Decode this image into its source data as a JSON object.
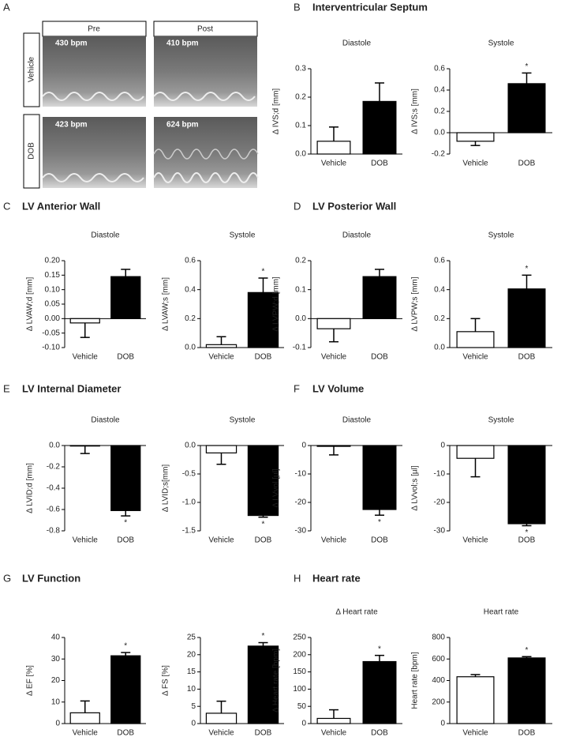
{
  "panel_a": {
    "letter": "A",
    "columns": [
      "Pre",
      "Post"
    ],
    "rows": [
      "Vehicle",
      "DOB"
    ],
    "rates": [
      "430 bpm",
      "410 bpm",
      "423 bpm",
      "624 bpm"
    ]
  },
  "panels": [
    {
      "letter": "B",
      "title": "Interventricular Septum"
    },
    {
      "letter": "C",
      "title": "LV Anterior Wall"
    },
    {
      "letter": "D",
      "title": "LV Posterior Wall"
    },
    {
      "letter": "E",
      "title": "LV Internal  Diameter"
    },
    {
      "letter": "F",
      "title": "LV Volume"
    },
    {
      "letter": "G",
      "title": "LV Function"
    },
    {
      "letter": "H",
      "title": "Heart rate"
    }
  ],
  "chart_data": [
    {
      "type": "bar",
      "title": "Diastole",
      "y_label": "Δ IVS;d [mm]",
      "categories": [
        "Vehicle",
        "DOB"
      ],
      "values": [
        0.045,
        0.185
      ],
      "errors": [
        0.05,
        0.065
      ],
      "markers": [
        null,
        null
      ],
      "colors": [
        "#ffffff",
        "#000000"
      ],
      "ylim": [
        0,
        0.3
      ],
      "yticks": [
        {
          "value": 0,
          "label": "0.0"
        },
        0.1,
        0.2,
        0.3
      ]
    },
    {
      "type": "bar",
      "title": "Systole",
      "y_label": "Δ IVS;s [mm]",
      "categories": [
        "Vehicle",
        "DOB"
      ],
      "values": [
        -0.08,
        0.46
      ],
      "errors": [
        0.04,
        0.1
      ],
      "markers": [
        null,
        "*"
      ],
      "colors": [
        "#ffffff",
        "#000000"
      ],
      "ylim": [
        -0.2,
        0.6
      ],
      "yticks": [
        -0.2,
        {
          "value": 0,
          "label": "0.0"
        },
        0.2,
        0.4,
        0.6
      ]
    },
    {
      "type": "bar",
      "title": "Diastole",
      "y_label": "Δ LVAW;d [mm]",
      "categories": [
        "Vehicle",
        "DOB"
      ],
      "values": [
        -0.015,
        0.145
      ],
      "errors": [
        0.05,
        0.025
      ],
      "markers": [
        null,
        null
      ],
      "colors": [
        "#ffffff",
        "#000000"
      ],
      "ylim": [
        -0.1,
        0.2
      ],
      "yticks": [
        {
          "value": -0.1,
          "label": "-0.10"
        },
        {
          "value": -0.05,
          "label": "-0.05"
        },
        {
          "value": 0,
          "label": "0.00"
        },
        {
          "value": 0.05,
          "label": "0.05"
        },
        {
          "value": 0.1,
          "label": "0.10"
        },
        0.15,
        {
          "value": 0.2,
          "label": "0.20"
        }
      ]
    },
    {
      "type": "bar",
      "title": "Systole",
      "y_label": "Δ LVAW;s [mm]",
      "categories": [
        "Vehicle",
        "DOB"
      ],
      "values": [
        0.02,
        0.38
      ],
      "errors": [
        0.055,
        0.1
      ],
      "markers": [
        null,
        "*"
      ],
      "colors": [
        "#ffffff",
        "#000000"
      ],
      "ylim": [
        0,
        0.6
      ],
      "yticks": [
        {
          "value": 0,
          "label": "0.0"
        },
        0.2,
        0.4,
        0.6
      ]
    },
    {
      "type": "bar",
      "title": "Diastole",
      "y_label": "Δ LVPW;d [mm]",
      "categories": [
        "Vehicle",
        "DOB"
      ],
      "values": [
        -0.035,
        0.145
      ],
      "errors": [
        0.045,
        0.025
      ],
      "markers": [
        null,
        null
      ],
      "colors": [
        "#ffffff",
        "#000000"
      ],
      "ylim": [
        -0.1,
        0.2
      ],
      "yticks": [
        -0.1,
        {
          "value": 0,
          "label": "0.0"
        },
        0.1,
        0.2
      ]
    },
    {
      "type": "bar",
      "title": "Systole",
      "y_label": "Δ LVPW;s [mm]",
      "categories": [
        "Vehicle",
        "DOB"
      ],
      "values": [
        0.11,
        0.405
      ],
      "errors": [
        0.09,
        0.095
      ],
      "markers": [
        null,
        "*"
      ],
      "colors": [
        "#ffffff",
        "#000000"
      ],
      "ylim": [
        0,
        0.6
      ],
      "yticks": [
        {
          "value": 0,
          "label": "0.0"
        },
        0.2,
        0.4,
        0.6
      ]
    },
    {
      "type": "bar",
      "title": "Diastole",
      "y_label": "Δ LVID;d [mm]",
      "categories": [
        "Vehicle",
        "DOB"
      ],
      "values": [
        -0.005,
        -0.61
      ],
      "errors": [
        0.07,
        0.05
      ],
      "markers": [
        null,
        "*"
      ],
      "colors": [
        "#ffffff",
        "#000000"
      ],
      "ylim": [
        -0.8,
        0
      ],
      "yticks": [
        {
          "value": 0,
          "label": "0.0"
        },
        -0.2,
        -0.4,
        -0.6,
        -0.8
      ]
    },
    {
      "type": "bar",
      "title": "Systole",
      "y_label": "Δ LVID;s[mm]",
      "categories": [
        "Vehicle",
        "DOB"
      ],
      "values": [
        -0.13,
        -1.23
      ],
      "errors": [
        0.2,
        0.03
      ],
      "markers": [
        null,
        "*"
      ],
      "colors": [
        "#ffffff",
        "#000000"
      ],
      "ylim": [
        -1.5,
        0
      ],
      "yticks": [
        {
          "value": 0,
          "label": "0.0"
        },
        -0.5,
        {
          "value": -1,
          "label": "-1.0"
        },
        -1.5
      ]
    },
    {
      "type": "bar",
      "title": "Diastole",
      "y_label": "Δ LVvol [µl]",
      "categories": [
        "Vehicle",
        "DOB"
      ],
      "values": [
        -0.3,
        -22.5
      ],
      "errors": [
        3,
        2
      ],
      "markers": [
        null,
        "*"
      ],
      "colors": [
        "#ffffff",
        "#000000"
      ],
      "ylim": [
        -30,
        0
      ],
      "yticks": [
        0,
        -10,
        -20,
        -30
      ]
    },
    {
      "type": "bar",
      "title": "Systole",
      "y_label": "Δ LVvol;s [µl]",
      "categories": [
        "Vehicle",
        "DOB"
      ],
      "values": [
        -4.5,
        -27.5
      ],
      "errors": [
        6.5,
        0.7
      ],
      "markers": [
        null,
        "*"
      ],
      "colors": [
        "#ffffff",
        "#000000"
      ],
      "ylim": [
        -30,
        0
      ],
      "yticks": [
        0,
        -10,
        -20,
        -30
      ]
    },
    {
      "type": "bar",
      "y_label": "Δ EF [%]",
      "categories": [
        "Vehicle",
        "DOB"
      ],
      "values": [
        5,
        31.5
      ],
      "errors": [
        5.5,
        1.5
      ],
      "markers": [
        null,
        "*"
      ],
      "colors": [
        "#ffffff",
        "#000000"
      ],
      "ylim": [
        0,
        40
      ],
      "yticks": [
        0,
        10,
        20,
        30,
        40
      ]
    },
    {
      "type": "bar",
      "y_label": "Δ FS [%]",
      "categories": [
        "Vehicle",
        "DOB"
      ],
      "values": [
        3,
        22.5
      ],
      "errors": [
        3.5,
        1
      ],
      "markers": [
        null,
        "*"
      ],
      "colors": [
        "#ffffff",
        "#000000"
      ],
      "ylim": [
        0,
        25
      ],
      "yticks": [
        0,
        5,
        10,
        15,
        20,
        25
      ]
    },
    {
      "type": "bar",
      "title": "Δ Heart rate",
      "y_label": "Δ Heart rate [bpm]",
      "categories": [
        "Vehicle",
        "DOB"
      ],
      "values": [
        15,
        180
      ],
      "errors": [
        25,
        18
      ],
      "markers": [
        null,
        "*"
      ],
      "colors": [
        "#ffffff",
        "#000000"
      ],
      "ylim": [
        0,
        250
      ],
      "yticks": [
        0,
        50,
        100,
        150,
        200,
        250
      ]
    },
    {
      "type": "bar",
      "title": "Heart rate",
      "y_label": "Heart rate [bpm]",
      "categories": [
        "Vehicle",
        "DOB"
      ],
      "values": [
        435,
        610
      ],
      "errors": [
        20,
        12
      ],
      "markers": [
        null,
        "*"
      ],
      "colors": [
        "#ffffff",
        "#000000"
      ],
      "ylim": [
        0,
        800
      ],
      "yticks": [
        0,
        200,
        400,
        600,
        800
      ]
    }
  ]
}
